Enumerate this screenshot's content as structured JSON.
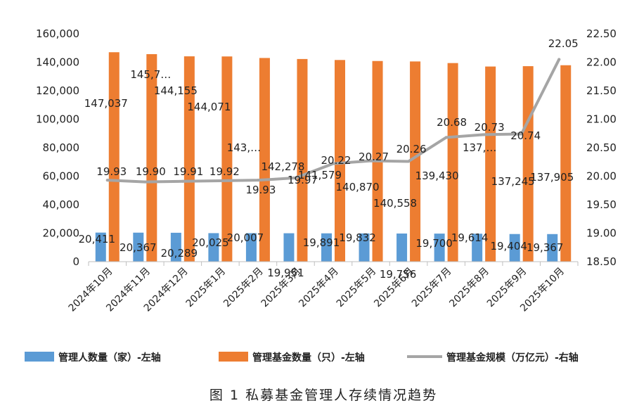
{
  "chart_data": {
    "type": "bar",
    "title": "图 1 私募基金管理人存续情况趋势",
    "categories": [
      "2024年10月",
      "2024年11月",
      "2024年12月",
      "2025年1月",
      "2025年2月",
      "2025年3月",
      "2025年4月",
      "2025年5月",
      "2025年6月",
      "2025年7月",
      "2025年8月",
      "2025年9月",
      "2025年10月"
    ],
    "series": [
      {
        "name": "管理人数量（家）-左轴",
        "type": "bar",
        "axis": "left",
        "color": "#5B9BD5",
        "values": [
          20411,
          20367,
          20289,
          20025,
          20007,
          19951,
          19891,
          19832,
          19756,
          19700,
          19614,
          19404,
          19367
        ],
        "labels": [
          "20,411",
          "20,367",
          "20,289",
          "20,025",
          "20,007",
          "19,951",
          "19,891",
          "19,832",
          "19,756",
          "19,700",
          "19,614",
          "19,404",
          "19,367"
        ]
      },
      {
        "name": "管理基金数量（只）-左轴",
        "type": "bar",
        "axis": "left",
        "color": "#ED7D31",
        "values": [
          147037,
          145700,
          144155,
          144071,
          143000,
          142278,
          141579,
          140870,
          140558,
          139430,
          137000,
          137245,
          137905
        ],
        "labels": [
          "147,037",
          "145,7…",
          "144,155",
          "144,071",
          "143,…",
          "142,278",
          "141,579",
          "140,870",
          "140,558",
          "139,430",
          "137,…",
          "137,245",
          "137,905"
        ]
      },
      {
        "name": "管理基金规模（万亿元）-右轴",
        "type": "line",
        "axis": "right",
        "color": "#A5A5A5",
        "values": [
          19.93,
          19.9,
          19.91,
          19.92,
          19.93,
          19.97,
          20.22,
          20.27,
          20.26,
          20.68,
          20.73,
          20.74,
          22.05
        ],
        "labels": [
          "19.93",
          "19.90",
          "19.91",
          "19.92",
          "19.93",
          "19.97",
          "20.22",
          "20.27",
          "20.26",
          "20.68",
          "20.73",
          "20.74",
          "22.05"
        ]
      }
    ],
    "y_left": {
      "range": [
        0,
        160000
      ],
      "ticks": [
        "0",
        "20,000",
        "40,000",
        "60,000",
        "80,000",
        "100,000",
        "120,000",
        "140,000",
        "160,000"
      ]
    },
    "y_right": {
      "range": [
        18.5,
        22.5
      ],
      "ticks": [
        "18.50",
        "19.00",
        "19.50",
        "20.00",
        "20.50",
        "21.00",
        "21.50",
        "22.00",
        "22.50"
      ]
    },
    "grid": false,
    "legend_position": "bottom"
  }
}
